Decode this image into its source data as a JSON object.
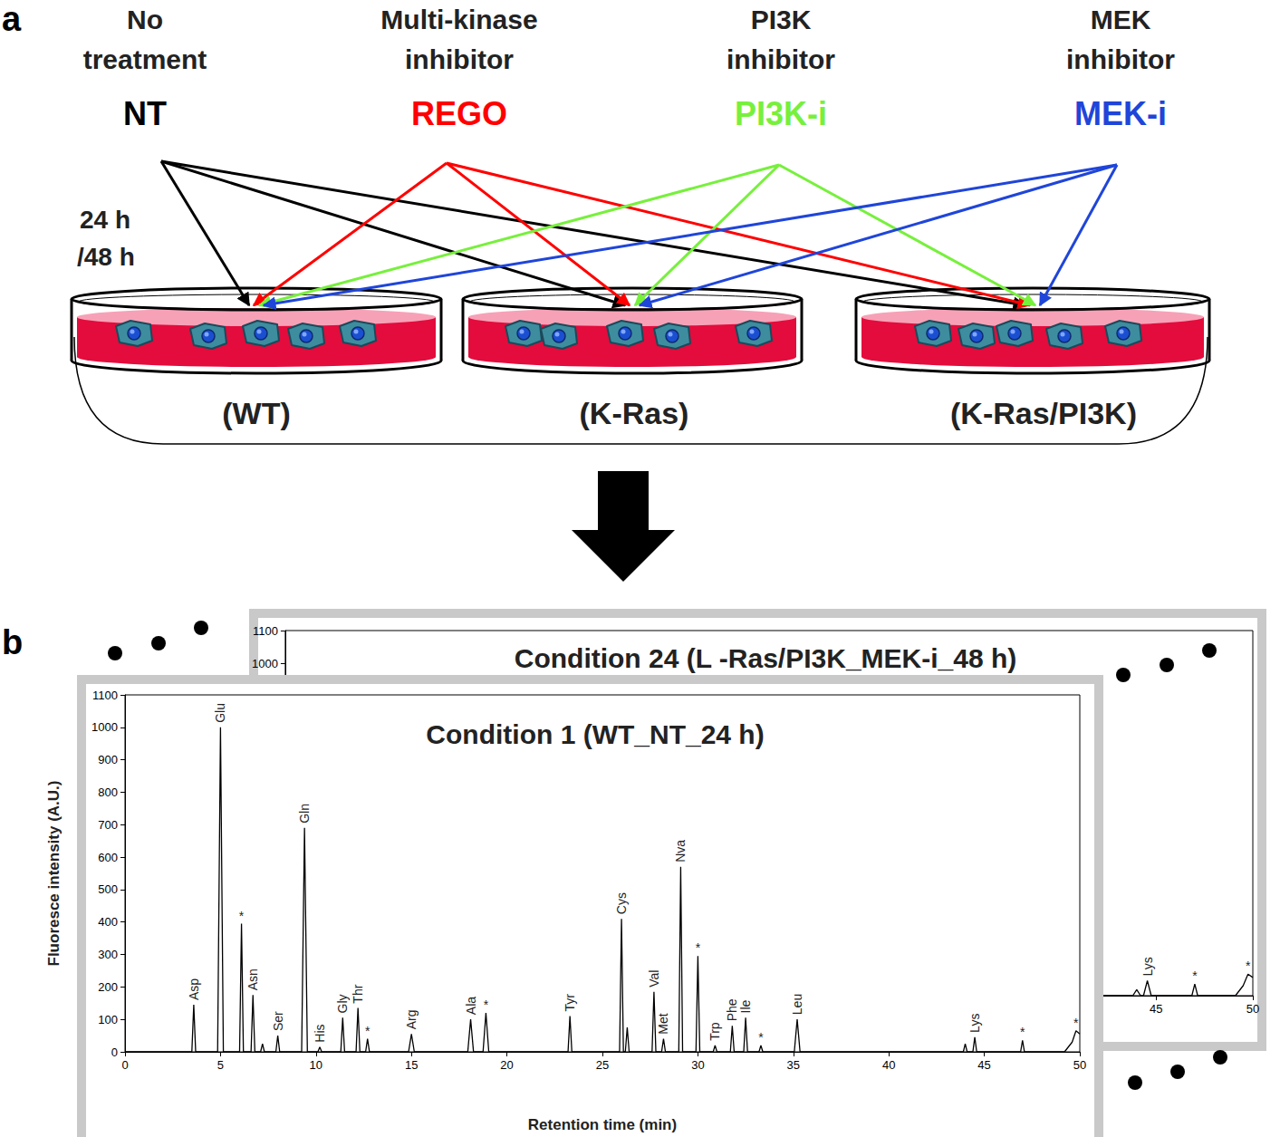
{
  "panel_a": {
    "label": "a",
    "treatments": [
      {
        "description": [
          "No",
          "treatment"
        ],
        "abbr": "NT",
        "color": "#000000"
      },
      {
        "description": [
          "Multi-kinase",
          "inhibitor"
        ],
        "abbr": "REGO",
        "color": "#ff0000"
      },
      {
        "description": [
          "PI3K",
          "inhibitor"
        ],
        "abbr": "PI3K-i",
        "color": "#77f03c"
      },
      {
        "description": [
          "MEK",
          "inhibitor"
        ],
        "abbr": "MEK-i",
        "color": "#1f45d9"
      }
    ],
    "time": [
      "24 h",
      "/48 h"
    ],
    "cell_lines": [
      "(WT)",
      "(K-Ras)",
      "(K-Ras/PI3K)"
    ]
  },
  "panel_b": {
    "label": "b"
  },
  "chart_data": [
    {
      "type": "line",
      "title": "Condition 24 (L -Ras/PI3K_MEK-i_48 h)",
      "x": [
        40,
        43.8,
        44.0,
        44.2,
        44.35,
        44.55,
        44.75,
        46.85,
        47.0,
        47.15,
        49.1,
        49.5,
        49.75,
        50
      ],
      "values": [
        0,
        0,
        18,
        0,
        0,
        45,
        0,
        0,
        35,
        0,
        0,
        30,
        65,
        55
      ],
      "point_labels": [
        null,
        null,
        null,
        null,
        null,
        "Lys",
        null,
        null,
        "*",
        null,
        null,
        null,
        "*",
        null
      ],
      "color": "#000000",
      "xlim": [
        0,
        50
      ],
      "xticks": [
        45,
        50
      ],
      "ylim": [
        0,
        1100
      ],
      "yticks": [
        1000,
        1100
      ],
      "grid": false
    },
    {
      "type": "line",
      "title": "Condition 1 (WT_NT_24 h)",
      "xlabel": "Retention time (min)",
      "ylabel": "Fluoresce intensity (A.U.)",
      "x": [
        0,
        3.5,
        3.6,
        3.7,
        4.85,
        5.0,
        5.15,
        6.0,
        6.1,
        6.2,
        6.6,
        6.7,
        6.8,
        7.1,
        7.2,
        7.3,
        7.9,
        8.0,
        8.1,
        9.25,
        9.4,
        9.55,
        10.1,
        10.2,
        10.3,
        11.3,
        11.4,
        11.5,
        12.1,
        12.2,
        12.3,
        12.6,
        12.7,
        12.8,
        14.85,
        15.0,
        15.15,
        17.95,
        18.1,
        18.25,
        18.75,
        18.9,
        19.05,
        23.2,
        23.3,
        23.4,
        25.9,
        26.0,
        26.1,
        26.2,
        26.3,
        26.4,
        27.6,
        27.7,
        27.8,
        28.1,
        28.2,
        28.3,
        29.0,
        29.1,
        29.2,
        29.9,
        30.0,
        30.1,
        30.8,
        30.9,
        31.0,
        31.7,
        31.8,
        31.9,
        32.4,
        32.5,
        32.6,
        33.2,
        33.3,
        33.4,
        35.05,
        35.2,
        35.35,
        43.9,
        44.0,
        44.1,
        44.4,
        44.5,
        44.6,
        46.9,
        47.0,
        47.1,
        49.2,
        49.6,
        49.8,
        50
      ],
      "values": [
        0,
        0,
        145,
        0,
        0,
        1000,
        0,
        0,
        395,
        0,
        0,
        175,
        0,
        0,
        25,
        0,
        0,
        50,
        0,
        0,
        690,
        0,
        0,
        15,
        0,
        0,
        105,
        0,
        0,
        135,
        0,
        0,
        40,
        0,
        0,
        55,
        0,
        0,
        100,
        0,
        0,
        120,
        0,
        0,
        110,
        0,
        0,
        410,
        0,
        0,
        75,
        0,
        0,
        185,
        0,
        0,
        40,
        0,
        0,
        570,
        0,
        0,
        295,
        0,
        0,
        20,
        0,
        0,
        80,
        0,
        0,
        105,
        0,
        0,
        20,
        0,
        0,
        100,
        0,
        0,
        25,
        0,
        0,
        45,
        0,
        0,
        35,
        0,
        0,
        30,
        65,
        55
      ],
      "point_labels": [
        null,
        null,
        "Asp",
        null,
        null,
        "Glu",
        null,
        null,
        "*",
        null,
        null,
        "Asn",
        null,
        null,
        null,
        null,
        null,
        "Ser",
        null,
        null,
        "Gln",
        null,
        null,
        "His",
        null,
        null,
        "Gly",
        null,
        null,
        "Thr",
        null,
        null,
        "*",
        null,
        null,
        "Arg",
        null,
        null,
        "Ala",
        null,
        null,
        "*",
        null,
        null,
        "Tyr",
        null,
        null,
        "Cys",
        null,
        null,
        null,
        null,
        null,
        "Val",
        null,
        null,
        "Met",
        null,
        null,
        "Nva",
        null,
        null,
        "*",
        null,
        null,
        "Trp",
        null,
        null,
        "Phe",
        null,
        null,
        "Ile",
        null,
        null,
        "*",
        null,
        null,
        "Leu",
        null,
        null,
        null,
        null,
        null,
        "Lys",
        null,
        null,
        "*",
        null,
        null,
        null,
        "*",
        null
      ],
      "color": "#000000",
      "xlim": [
        0,
        50
      ],
      "xticks": [
        0,
        5,
        10,
        15,
        20,
        25,
        30,
        35,
        40,
        45,
        50
      ],
      "ylim": [
        0,
        1100
      ],
      "yticks": [
        0,
        100,
        200,
        300,
        400,
        500,
        600,
        700,
        800,
        900,
        1000,
        1100
      ],
      "grid": false
    }
  ]
}
